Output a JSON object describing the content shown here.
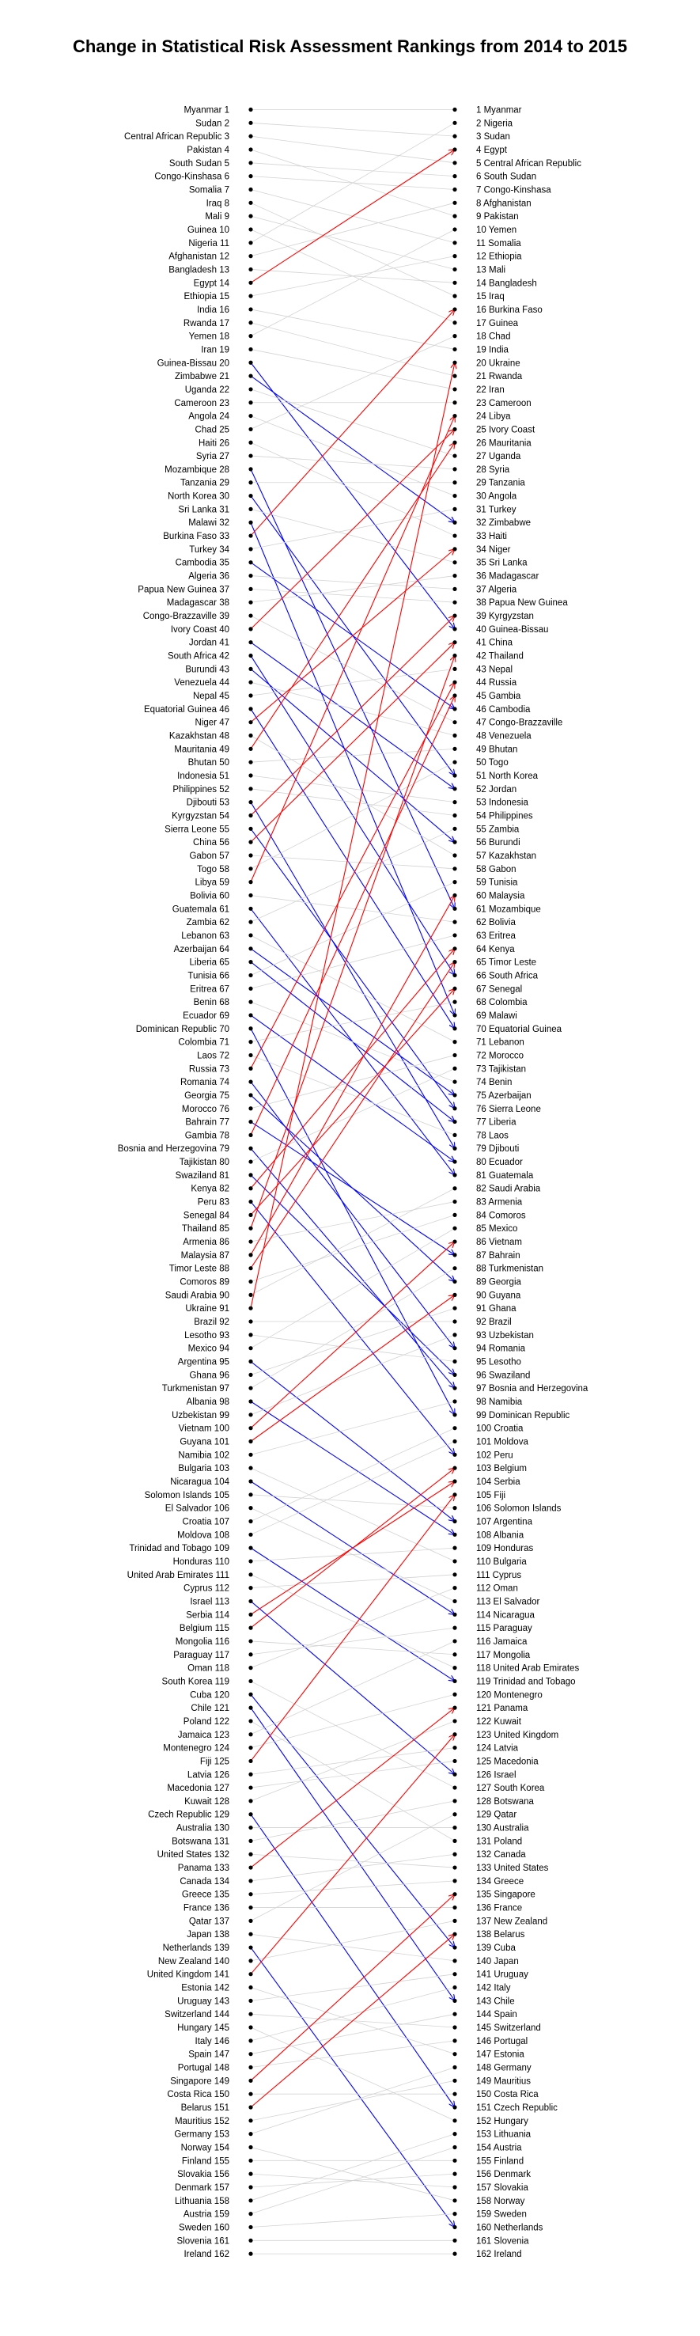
{
  "chart_data": {
    "type": "slope",
    "title": "Change in Statistical Risk Assessment Rankings from 2014 to 2015",
    "left_year": "2014",
    "right_year": "2015",
    "colors": {
      "up": "#ff0000",
      "down": "#0000ff",
      "neutral": "#d3d3d3",
      "dot": "#000000"
    },
    "rank_2014": [
      "Myanmar",
      "Sudan",
      "Central African Republic",
      "Pakistan",
      "South Sudan",
      "Congo-Kinshasa",
      "Somalia",
      "Iraq",
      "Mali",
      "Guinea",
      "Nigeria",
      "Afghanistan",
      "Bangladesh",
      "Egypt",
      "Ethiopia",
      "India",
      "Rwanda",
      "Yemen",
      "Iran",
      "Guinea-Bissau",
      "Zimbabwe",
      "Uganda",
      "Cameroon",
      "Angola",
      "Chad",
      "Haiti",
      "Syria",
      "Mozambique",
      "Tanzania",
      "North Korea",
      "Sri Lanka",
      "Malawi",
      "Burkina Faso",
      "Turkey",
      "Cambodia",
      "Algeria",
      "Papua New Guinea",
      "Madagascar",
      "Congo-Brazzaville",
      "Ivory Coast",
      "Jordan",
      "South Africa",
      "Burundi",
      "Venezuela",
      "Nepal",
      "Equatorial Guinea",
      "Niger",
      "Kazakhstan",
      "Mauritania",
      "Bhutan",
      "Indonesia",
      "Philippines",
      "Djibouti",
      "Kyrgyzstan",
      "Sierra Leone",
      "China",
      "Gabon",
      "Togo",
      "Libya",
      "Bolivia",
      "Guatemala",
      "Zambia",
      "Lebanon",
      "Azerbaijan",
      "Liberia",
      "Tunisia",
      "Eritrea",
      "Benin",
      "Ecuador",
      "Dominican Republic",
      "Colombia",
      "Laos",
      "Russia",
      "Romania",
      "Georgia",
      "Morocco",
      "Bahrain",
      "Gambia",
      "Bosnia and Herzegovina",
      "Tajikistan",
      "Swaziland",
      "Kenya",
      "Peru",
      "Senegal",
      "Thailand",
      "Armenia",
      "Malaysia",
      "Timor Leste",
      "Comoros",
      "Saudi Arabia",
      "Ukraine",
      "Brazil",
      "Lesotho",
      "Mexico",
      "Argentina",
      "Ghana",
      "Turkmenistan",
      "Albania",
      "Uzbekistan",
      "Vietnam",
      "Guyana",
      "Namibia",
      "Bulgaria",
      "Nicaragua",
      "Solomon Islands",
      "El Salvador",
      "Croatia",
      "Moldova",
      "Trinidad and Tobago",
      "Honduras",
      "United Arab Emirates",
      "Cyprus",
      "Israel",
      "Serbia",
      "Belgium",
      "Mongolia",
      "Paraguay",
      "Oman",
      "South Korea",
      "Cuba",
      "Chile",
      "Poland",
      "Jamaica",
      "Montenegro",
      "Fiji",
      "Latvia",
      "Macedonia",
      "Kuwait",
      "Czech Republic",
      "Australia",
      "Botswana",
      "United States",
      "Panama",
      "Canada",
      "Greece",
      "France",
      "Qatar",
      "Japan",
      "Netherlands",
      "New Zealand",
      "United Kingdom",
      "Estonia",
      "Uruguay",
      "Switzerland",
      "Hungary",
      "Italy",
      "Spain",
      "Portugal",
      "Singapore",
      "Costa Rica",
      "Belarus",
      "Mauritius",
      "Germany",
      "Norway",
      "Finland",
      "Slovakia",
      "Denmark",
      "Lithuania",
      "Austria",
      "Sweden",
      "Slovenia",
      "Ireland"
    ],
    "rank_2015": [
      "Myanmar",
      "Nigeria",
      "Sudan",
      "Egypt",
      "Central African Republic",
      "South Sudan",
      "Congo-Kinshasa",
      "Afghanistan",
      "Pakistan",
      "Yemen",
      "Somalia",
      "Ethiopia",
      "Mali",
      "Bangladesh",
      "Iraq",
      "Burkina Faso",
      "Guinea",
      "Chad",
      "India",
      "Ukraine",
      "Rwanda",
      "Iran",
      "Cameroon",
      "Libya",
      "Ivory Coast",
      "Mauritania",
      "Uganda",
      "Syria",
      "Tanzania",
      "Angola",
      "Turkey",
      "Zimbabwe",
      "Haiti",
      "Niger",
      "Sri Lanka",
      "Madagascar",
      "Algeria",
      "Papua New Guinea",
      "Kyrgyzstan",
      "Guinea-Bissau",
      "China",
      "Thailand",
      "Nepal",
      "Russia",
      "Gambia",
      "Cambodia",
      "Congo-Brazzaville",
      "Venezuela",
      "Bhutan",
      "Togo",
      "North Korea",
      "Jordan",
      "Indonesia",
      "Philippines",
      "Zambia",
      "Burundi",
      "Kazakhstan",
      "Gabon",
      "Tunisia",
      "Malaysia",
      "Mozambique",
      "Bolivia",
      "Eritrea",
      "Kenya",
      "Timor Leste",
      "South Africa",
      "Senegal",
      "Colombia",
      "Malawi",
      "Equatorial Guinea",
      "Lebanon",
      "Morocco",
      "Tajikistan",
      "Benin",
      "Azerbaijan",
      "Sierra Leone",
      "Liberia",
      "Laos",
      "Djibouti",
      "Ecuador",
      "Guatemala",
      "Saudi Arabia",
      "Armenia",
      "Comoros",
      "Mexico",
      "Vietnam",
      "Bahrain",
      "Turkmenistan",
      "Georgia",
      "Guyana",
      "Ghana",
      "Brazil",
      "Uzbekistan",
      "Romania",
      "Lesotho",
      "Swaziland",
      "Bosnia and Herzegovina",
      "Namibia",
      "Dominican Republic",
      "Croatia",
      "Moldova",
      "Peru",
      "Belgium",
      "Serbia",
      "Fiji",
      "Solomon Islands",
      "Argentina",
      "Albania",
      "Honduras",
      "Bulgaria",
      "Cyprus",
      "Oman",
      "El Salvador",
      "Nicaragua",
      "Paraguay",
      "Jamaica",
      "Mongolia",
      "United Arab Emirates",
      "Trinidad and Tobago",
      "Montenegro",
      "Panama",
      "Kuwait",
      "United Kingdom",
      "Latvia",
      "Macedonia",
      "Israel",
      "South Korea",
      "Botswana",
      "Qatar",
      "Australia",
      "Poland",
      "Canada",
      "United States",
      "Greece",
      "Singapore",
      "France",
      "New Zealand",
      "Belarus",
      "Cuba",
      "Japan",
      "Uruguay",
      "Italy",
      "Chile",
      "Spain",
      "Switzerland",
      "Portugal",
      "Estonia",
      "Germany",
      "Mauritius",
      "Costa Rica",
      "Czech Republic",
      "Hungary",
      "Lithuania",
      "Austria",
      "Finland",
      "Denmark",
      "Slovakia",
      "Norway",
      "Sweden",
      "Netherlands",
      "Slovenia",
      "Ireland"
    ]
  }
}
